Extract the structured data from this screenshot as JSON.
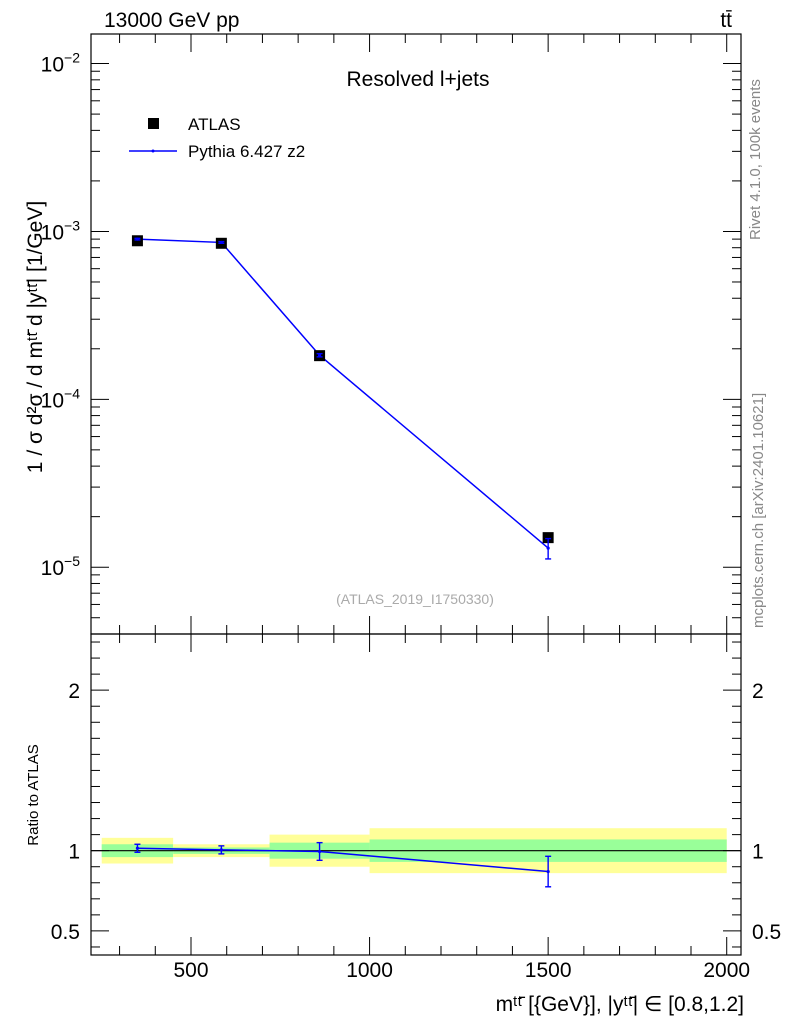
{
  "header": {
    "energy_label": "13000 GeV pp",
    "process_label": "tt̄"
  },
  "side_labels": {
    "rivet": "Rivet 4.1.0,  100k events",
    "source": "mcplots.cern.ch [arXiv:2401.10621]"
  },
  "chart_data": [
    {
      "type": "scatter",
      "panel": "main",
      "title": "Resolved l+jets",
      "watermark": "(ATLAS_2019_I1750330)",
      "ylabel": "1 / σ d²σ / d mᵗᵗ̄ d |yᵗᵗ̄| [1/GeV]",
      "yscale": "log",
      "ylim": [
        4e-06,
        0.015
      ],
      "xlim": [
        220,
        2040
      ],
      "ytick_labels": [
        {
          "value": 1e-05,
          "base": "10",
          "exp": "−5"
        },
        {
          "value": 0.0001,
          "base": "10",
          "exp": "−4"
        },
        {
          "value": 0.001,
          "base": "10",
          "exp": "−3"
        },
        {
          "value": 0.01,
          "base": "10",
          "exp": "−2"
        }
      ],
      "legend_position": "top-left",
      "series": [
        {
          "name": "ATLAS",
          "style": "markers",
          "color": "#000000",
          "x": [
            350,
            585,
            860,
            1500
          ],
          "y": [
            0.00088,
            0.00085,
            0.000182,
            1.5e-05
          ]
        },
        {
          "name": "Pythia 6.427 z2",
          "style": "line",
          "color": "#0000ff",
          "x": [
            350,
            585,
            860,
            1500
          ],
          "y": [
            0.0009,
            0.00086,
            0.000183,
            1.3e-05
          ],
          "yerr": [
            1e-05,
            1e-05,
            4e-06,
            1.8e-06
          ]
        }
      ]
    },
    {
      "type": "line",
      "panel": "ratio",
      "ylabel": "Ratio to ATLAS",
      "xlabel": "mᵗᵗ̄ [{GeV}], |yᵗᵗ̄| ∈ [0.8,1.2]",
      "ylim": [
        0.35,
        2.35
      ],
      "xlim": [
        220,
        2040
      ],
      "xticks": [
        500,
        1000,
        1500,
        2000
      ],
      "yticks": [
        0.5,
        1,
        2
      ],
      "reference_line": 1,
      "bands": [
        {
          "x0": 250,
          "x1": 450,
          "inner": [
            0.96,
            1.04
          ],
          "outer": [
            0.92,
            1.08
          ]
        },
        {
          "x0": 450,
          "x1": 720,
          "inner": [
            0.98,
            1.02
          ],
          "outer": [
            0.96,
            1.04
          ]
        },
        {
          "x0": 720,
          "x1": 1000,
          "inner": [
            0.95,
            1.05
          ],
          "outer": [
            0.9,
            1.1
          ]
        },
        {
          "x0": 1000,
          "x1": 2000,
          "inner": [
            0.93,
            1.07
          ],
          "outer": [
            0.86,
            1.14
          ]
        }
      ],
      "band_colors": {
        "inner": "#99ff99",
        "outer": "#ffff99"
      },
      "series": [
        {
          "name": "Pythia 6.427 z2",
          "color": "#0000ff",
          "x": [
            350,
            585,
            860,
            1500
          ],
          "y": [
            1.015,
            1.005,
            0.995,
            0.87
          ],
          "yerr": [
            0.025,
            0.025,
            0.055,
            0.095
          ]
        }
      ]
    }
  ]
}
